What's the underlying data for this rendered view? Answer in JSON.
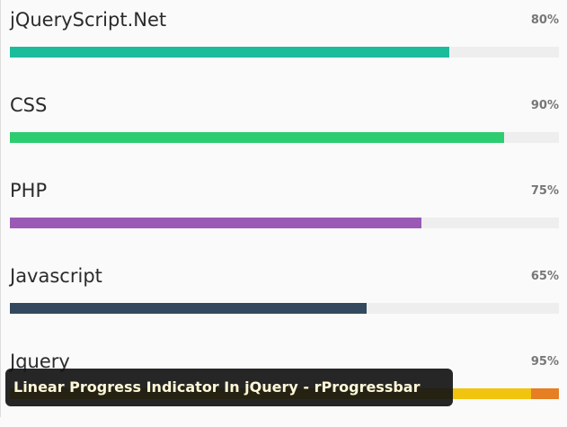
{
  "progress_bars": [
    {
      "label": "jQueryScript.Net",
      "value": 80,
      "value_label": "80%",
      "color": "#1abc9c",
      "track_color": "#eeeeee"
    },
    {
      "label": "CSS",
      "value": 90,
      "value_label": "90%",
      "color": "#2ecc71",
      "track_color": "#eeeeee"
    },
    {
      "label": "PHP",
      "value": 75,
      "value_label": "75%",
      "color": "#9b59b6",
      "track_color": "#eeeeee"
    },
    {
      "label": "Javascript",
      "value": 65,
      "value_label": "65%",
      "color": "#34495e",
      "track_color": "#eeeeee"
    },
    {
      "label": "Jquery",
      "value": 95,
      "value_label": "95%",
      "color": "#f1c40f",
      "track_color": "#e67e22"
    }
  ],
  "caption": "Linear Progress Indicator In jQuery - rProgressbar"
}
